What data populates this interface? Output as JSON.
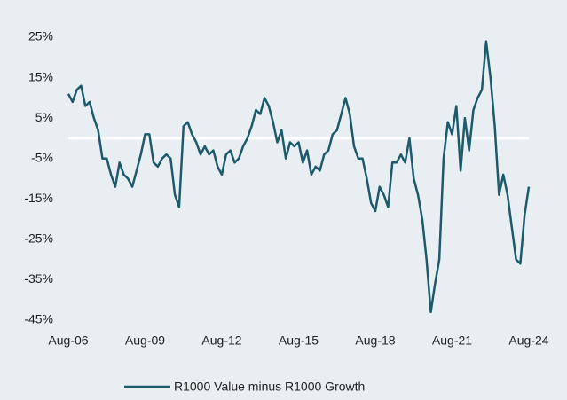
{
  "chart_data": {
    "type": "line",
    "categories": [
      "Aug-06",
      null,
      null,
      null,
      null,
      null,
      null,
      null,
      null,
      null,
      null,
      null,
      null,
      null,
      null,
      null,
      null,
      null,
      "Aug-09",
      null,
      null,
      null,
      null,
      null,
      null,
      null,
      null,
      null,
      null,
      null,
      null,
      null,
      null,
      null,
      null,
      null,
      "Aug-12",
      null,
      null,
      null,
      null,
      null,
      null,
      null,
      null,
      null,
      null,
      null,
      null,
      null,
      null,
      null,
      null,
      null,
      "Aug-15",
      null,
      null,
      null,
      null,
      null,
      null,
      null,
      null,
      null,
      null,
      null,
      null,
      null,
      null,
      null,
      null,
      null,
      "Aug-18",
      null,
      null,
      null,
      null,
      null,
      null,
      null,
      null,
      null,
      null,
      null,
      null,
      null,
      null,
      null,
      null,
      null,
      "Aug-21",
      null,
      null,
      null,
      null,
      null,
      null,
      null,
      null,
      null,
      null,
      null,
      null,
      null,
      null,
      null,
      null,
      null,
      "Aug-24"
    ],
    "series": [
      {
        "name": "R1000 Value minus R1000 Growth",
        "color": "#1d5a6b",
        "values": [
          11,
          9,
          12,
          13,
          8,
          9,
          5,
          2,
          -5,
          -5,
          -9,
          -12,
          -6,
          -9,
          -10,
          -12,
          -8,
          -4,
          1,
          1,
          -6,
          -7,
          -5,
          -4,
          -5,
          -14,
          -17,
          3,
          4,
          1,
          -1,
          -4,
          -2,
          -4,
          -3,
          -7,
          -9,
          -4,
          -3,
          -6,
          -5,
          -2,
          0,
          3,
          7,
          6,
          10,
          8,
          4,
          -1,
          2,
          -5,
          -1,
          -2,
          -1,
          -6,
          -3,
          -9,
          -7,
          -8,
          -4,
          -3,
          1,
          2,
          6,
          10,
          6,
          -2,
          -5,
          -5,
          -10,
          -16,
          -18,
          -12,
          -14,
          -17,
          -6,
          -6,
          -4,
          -6,
          0,
          -10,
          -14,
          -20,
          -30,
          -43,
          -36,
          -30,
          -5,
          4,
          1,
          8,
          -8,
          5,
          -3,
          7,
          10,
          12,
          24,
          15,
          3,
          -14,
          -9,
          -14,
          -22,
          -30,
          -31,
          -19,
          -12
        ]
      }
    ],
    "ylim": [
      -45,
      25
    ],
    "yticks": [
      {
        "value": -45,
        "label": "-45%"
      },
      {
        "value": -35,
        "label": "-35%"
      },
      {
        "value": -25,
        "label": "-25%"
      },
      {
        "value": -15,
        "label": "-15%"
      },
      {
        "value": -5,
        "label": "-5%"
      },
      {
        "value": 5,
        "label": "5%"
      },
      {
        "value": 15,
        "label": "15%"
      },
      {
        "value": 25,
        "label": "25%"
      }
    ],
    "zero_line": true,
    "legend": "bottom"
  }
}
